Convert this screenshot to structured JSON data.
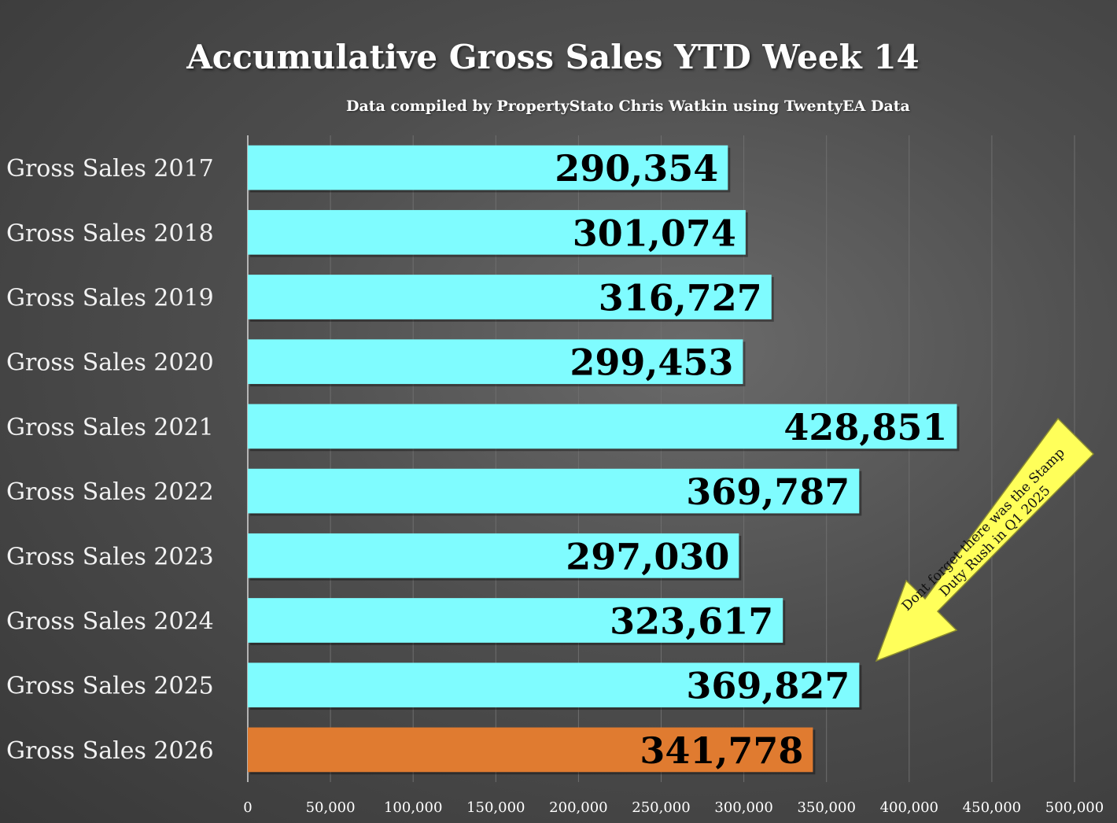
{
  "chart_data": {
    "type": "bar",
    "orientation": "horizontal",
    "title": "Accumulative Gross Sales YTD Week 14",
    "subtitle": "Data compiled by PropertyStato Chris Watkin using TwentyEA Data",
    "categories": [
      "Gross Sales 2017",
      "Gross Sales 2018",
      "Gross Sales 2019",
      "Gross Sales 2020",
      "Gross Sales 2021",
      "Gross Sales 2022",
      "Gross Sales 2023",
      "Gross Sales 2024",
      "Gross Sales 2025",
      "Gross Sales 2026"
    ],
    "values": [
      290354,
      301074,
      316727,
      299453,
      428851,
      369787,
      297030,
      323617,
      369827,
      341778
    ],
    "value_labels": [
      "290,354",
      "301,074",
      "316,727",
      "299,453",
      "428,851",
      "369,787",
      "297,030",
      "323,617",
      "369,827",
      "341,778"
    ],
    "bar_colors": [
      "#7ffcff",
      "#7ffcff",
      "#7ffcff",
      "#7ffcff",
      "#7ffcff",
      "#7ffcff",
      "#7ffcff",
      "#7ffcff",
      "#7ffcff",
      "#e07b30"
    ],
    "xlim": [
      0,
      500000
    ],
    "x_ticks": [
      0,
      50000,
      100000,
      150000,
      200000,
      250000,
      300000,
      350000,
      400000,
      450000,
      500000
    ],
    "x_tick_labels": [
      "0",
      "50,000",
      "100,000",
      "150,000",
      "200,000",
      "250,000",
      "300,000",
      "350,000",
      "400,000",
      "450,000",
      "500,000"
    ],
    "grid": true,
    "annotation": "Dont forget there was the Stamp Duty Rush in Q1 2025"
  },
  "colors": {
    "background": "#4e4e4e",
    "bar": "#7ffcff",
    "highlight_bar": "#e07b30",
    "annotation_arrow": "#ffff5a"
  }
}
